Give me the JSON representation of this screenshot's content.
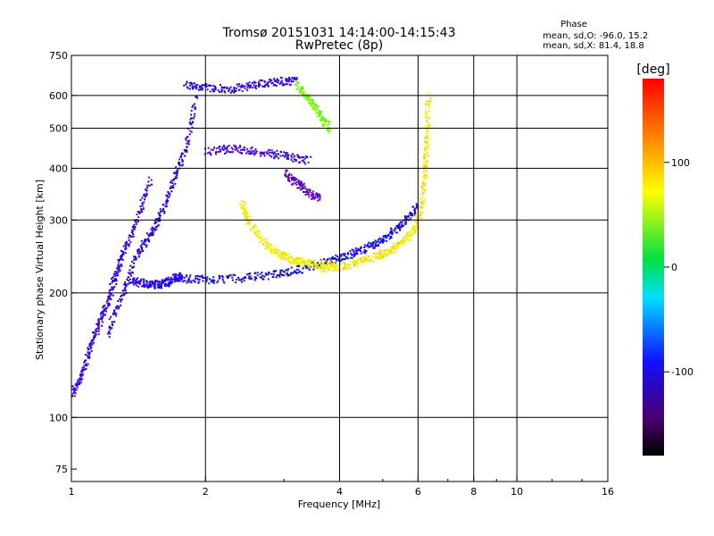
{
  "chart_data": {
    "type": "scatter",
    "title": "Tromsø 20151031 14:14:00-14:15:43",
    "subtitle": "RwPretec (8p)",
    "xlabel": "Frequency [MHz]",
    "ylabel": "Stationary phase Virtual Height [km]",
    "x_scale": "log",
    "y_scale": "log",
    "xlim": [
      1,
      16
    ],
    "ylim": [
      70,
      750
    ],
    "x_ticks": [
      1,
      2,
      4,
      6,
      8,
      10,
      16
    ],
    "x_tick_labels": [
      "1",
      "2",
      "4",
      "6",
      "8",
      "10",
      "16"
    ],
    "x_gridlines": [
      2,
      4,
      6,
      8,
      10
    ],
    "y_ticks": [
      75,
      100,
      200,
      300,
      400,
      500,
      600,
      750
    ],
    "y_tick_labels": [
      "75",
      "100",
      "200",
      "300",
      "400",
      "500",
      "600",
      "750"
    ],
    "y_gridlines": [
      100,
      200,
      300,
      400,
      500,
      600
    ],
    "grid": true,
    "legend": {
      "title": "Phase",
      "line1": "mean, sd,O: -96.0, 15.2",
      "line2": "mean, sd,X:  81.4, 18.8",
      "position": "top-right"
    },
    "colorbar": {
      "label": "[deg]",
      "range": [
        -180,
        180
      ],
      "ticks": [
        100,
        0,
        -100
      ],
      "tick_labels": [
        "100",
        "0",
        "-100"
      ],
      "colormap": "rainbow (black-purple-blue-cyan-green-yellow-orange-red)"
    },
    "traces": [
      {
        "x": [
          1.35,
          1.45,
          1.55,
          1.62,
          1.7,
          1.75
        ],
        "y": [
          215,
          212,
          210,
          212,
          218,
          220
        ],
        "phase": -100
      },
      {
        "x": [
          1.75,
          2.0,
          2.4,
          2.8,
          3.2,
          3.6,
          4.0,
          4.4,
          4.8,
          5.2,
          5.6,
          6.0
        ],
        "y": [
          218,
          216,
          218,
          222,
          228,
          236,
          244,
          253,
          264,
          280,
          300,
          330
        ],
        "phase": -95
      },
      {
        "x": [
          3.6,
          4.0,
          4.4,
          4.8,
          5.2,
          5.6,
          5.9,
          6.1,
          6.2,
          6.25,
          6.3
        ],
        "y": [
          230,
          232,
          238,
          246,
          256,
          270,
          290,
          330,
          400,
          480,
          600
        ],
        "phase": 80
      },
      {
        "x": [
          2.4,
          2.5,
          2.7,
          2.9,
          3.1,
          3.3,
          3.6,
          3.9
        ],
        "y": [
          330,
          295,
          265,
          250,
          242,
          238,
          235,
          233
        ],
        "phase": 75
      },
      {
        "x": [
          1.0,
          1.05,
          1.1,
          1.15,
          1.2,
          1.25,
          1.3,
          1.4,
          1.5
        ],
        "y": [
          115,
          125,
          150,
          170,
          190,
          220,
          250,
          300,
          380
        ],
        "phase": -110
      },
      {
        "x": [
          1.2,
          1.3,
          1.4,
          1.5,
          1.6,
          1.7,
          1.8,
          1.9
        ],
        "y": [
          160,
          200,
          250,
          280,
          320,
          380,
          450,
          600
        ],
        "phase": -105
      },
      {
        "x": [
          1.8,
          2.0,
          2.3,
          2.6,
          2.9,
          3.2
        ],
        "y": [
          640,
          630,
          625,
          640,
          650,
          655
        ],
        "phase": -105
      },
      {
        "x": [
          3.2,
          3.4,
          3.6,
          3.8
        ],
        "y": [
          640,
          590,
          540,
          500
        ],
        "phase": 40
      },
      {
        "x": [
          2.0,
          2.3,
          2.6,
          3.0,
          3.4
        ],
        "y": [
          440,
          450,
          440,
          430,
          420
        ],
        "phase": -110
      },
      {
        "x": [
          3.0,
          3.2,
          3.4,
          3.6
        ],
        "y": [
          390,
          370,
          350,
          340
        ],
        "phase": -140
      }
    ]
  }
}
